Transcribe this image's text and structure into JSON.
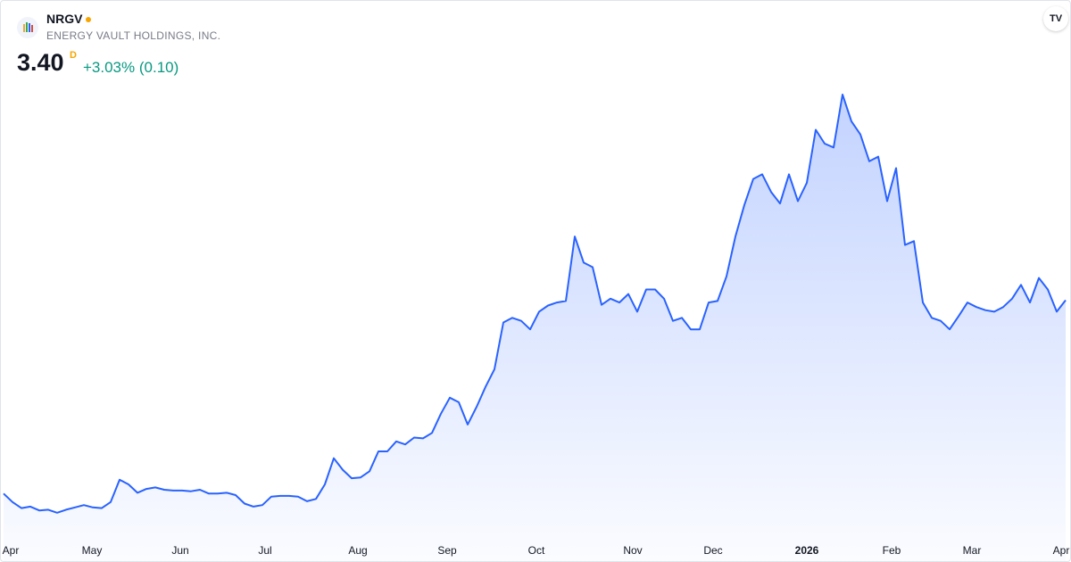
{
  "header": {
    "symbol": "NRGV",
    "name": "ENERGY VAULT HOLDINGS, INC.",
    "price": "3.40",
    "flag": "D",
    "change": "+3.03% (0.10)"
  },
  "chart_data": {
    "type": "area",
    "color": "#2962ff",
    "values": [
      0.88,
      0.77,
      0.69,
      0.71,
      0.66,
      0.67,
      0.63,
      0.67,
      0.7,
      0.73,
      0.7,
      0.69,
      0.77,
      1.06,
      1.0,
      0.89,
      0.94,
      0.96,
      0.93,
      0.92,
      0.92,
      0.91,
      0.93,
      0.88,
      0.88,
      0.89,
      0.86,
      0.75,
      0.71,
      0.73,
      0.84,
      0.85,
      0.85,
      0.84,
      0.78,
      0.81,
      1.0,
      1.34,
      1.19,
      1.08,
      1.09,
      1.17,
      1.43,
      1.43,
      1.56,
      1.52,
      1.61,
      1.6,
      1.67,
      1.92,
      2.13,
      2.07,
      1.78,
      2.01,
      2.27,
      2.5,
      3.11,
      3.17,
      3.13,
      3.02,
      3.25,
      3.33,
      3.37,
      3.39,
      4.23,
      3.89,
      3.83,
      3.34,
      3.42,
      3.37,
      3.48,
      3.25,
      3.54,
      3.54,
      3.42,
      3.13,
      3.17,
      3.02,
      3.02,
      3.37,
      3.39,
      3.71,
      4.23,
      4.64,
      4.98,
      5.04,
      4.81,
      4.66,
      5.04,
      4.69,
      4.93,
      5.62,
      5.44,
      5.39,
      6.08,
      5.73,
      5.56,
      5.21,
      5.27,
      4.69,
      5.12,
      4.12,
      4.17,
      3.37,
      3.17,
      3.13,
      3.02,
      3.19,
      3.37,
      3.31,
      3.27,
      3.25,
      3.31,
      3.42,
      3.6,
      3.37,
      3.69,
      3.54,
      3.25,
      3.4
    ],
    "ylim": [
      0,
      7.3
    ],
    "xticks": [
      {
        "value": 0.8,
        "label": "Apr"
      },
      {
        "value": 9.9,
        "label": "May"
      },
      {
        "value": 19.8,
        "label": "Jun"
      },
      {
        "value": 29.3,
        "label": "Jul"
      },
      {
        "value": 39.7,
        "label": "Aug"
      },
      {
        "value": 49.7,
        "label": "Sep"
      },
      {
        "value": 59.7,
        "label": "Oct"
      },
      {
        "value": 70.5,
        "label": "Nov"
      },
      {
        "value": 79.5,
        "label": "Dec"
      },
      {
        "value": 90,
        "label": "2026"
      },
      {
        "value": 99.5,
        "label": "Feb"
      },
      {
        "value": 108.5,
        "label": "Mar"
      },
      {
        "value": 118.5,
        "label": "Apr"
      }
    ]
  }
}
